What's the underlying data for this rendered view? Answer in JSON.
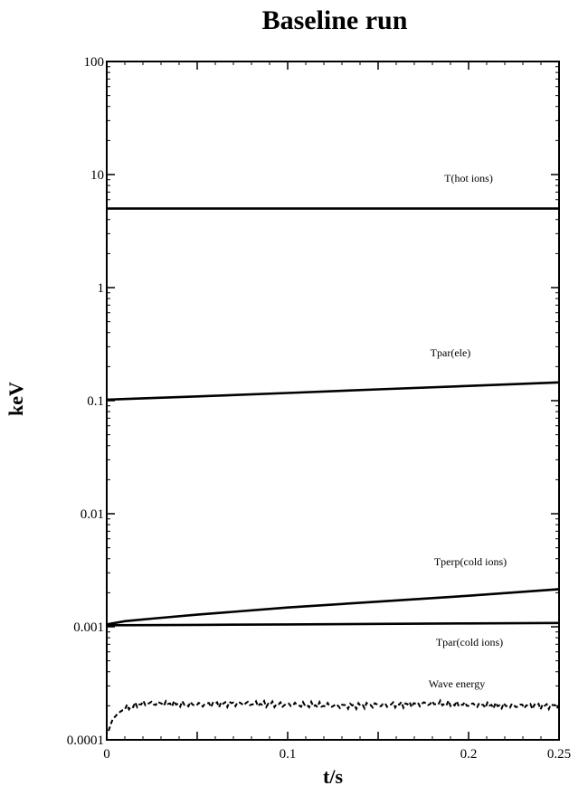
{
  "chart_data": {
    "type": "line",
    "title": "Baseline run",
    "xlabel": "t/s",
    "ylabel": "keV",
    "x_scale": "linear",
    "y_scale": "log",
    "xlim": [
      0,
      0.25
    ],
    "ylim": [
      0.0001,
      100
    ],
    "x_ticks": [
      {
        "value": 0,
        "label": "0"
      },
      {
        "value": 0.1,
        "label": "0.1"
      },
      {
        "value": 0.2,
        "label": "0.2"
      },
      {
        "value": 0.25,
        "label": "0.25"
      }
    ],
    "y_ticks": [
      {
        "value": 0.0001,
        "label": "0.0001"
      },
      {
        "value": 0.001,
        "label": "0.001"
      },
      {
        "value": 0.01,
        "label": "0.01"
      },
      {
        "value": 0.1,
        "label": "0.1"
      },
      {
        "value": 1,
        "label": "1"
      },
      {
        "value": 10,
        "label": "10"
      },
      {
        "value": 100,
        "label": "100"
      }
    ],
    "grid": false,
    "legend": "none (series labeled inline)",
    "series": [
      {
        "name": "T(hot ions)",
        "style": "solid",
        "x": [
          0,
          0.25
        ],
        "y": [
          5.0,
          5.0
        ]
      },
      {
        "name": "Tpar(ele)",
        "style": "solid",
        "x": [
          0,
          0.05,
          0.1,
          0.15,
          0.2,
          0.25
        ],
        "y": [
          0.102,
          0.109,
          0.117,
          0.126,
          0.135,
          0.145
        ]
      },
      {
        "name": "Tperp(cold ions)",
        "style": "solid",
        "x": [
          0,
          0.01,
          0.025,
          0.05,
          0.1,
          0.15,
          0.2,
          0.25
        ],
        "y": [
          0.00105,
          0.00112,
          0.00118,
          0.00128,
          0.00148,
          0.00167,
          0.00188,
          0.00215
        ]
      },
      {
        "name": "Tpar(cold ions)",
        "style": "solid",
        "x": [
          0,
          0.05,
          0.1,
          0.15,
          0.2,
          0.25
        ],
        "y": [
          0.00103,
          0.00104,
          0.00105,
          0.00106,
          0.00107,
          0.00108
        ]
      },
      {
        "name": "Wave energy",
        "style": "dashed",
        "x": [
          0.001,
          0.003,
          0.006,
          0.01,
          0.015,
          0.02,
          0.03,
          0.05,
          0.07,
          0.1,
          0.13,
          0.16,
          0.18,
          0.2,
          0.22,
          0.25
        ],
        "y": [
          0.00012,
          0.00015,
          0.00017,
          0.00019,
          0.0002,
          0.00021,
          0.00021,
          0.000205,
          0.00021,
          0.000205,
          0.0002,
          0.000205,
          0.00021,
          0.000205,
          0.0002,
          0.0002
        ]
      }
    ]
  }
}
